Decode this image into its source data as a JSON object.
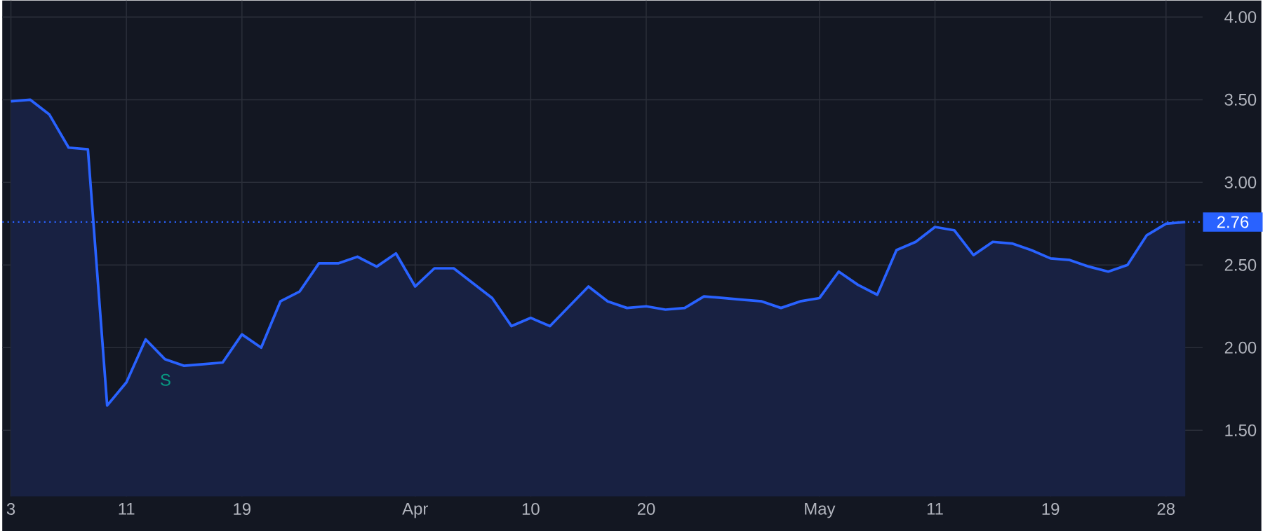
{
  "chart_data": {
    "type": "area",
    "categories": [
      "3",
      null,
      null,
      null,
      null,
      null,
      "11",
      null,
      null,
      null,
      null,
      null,
      "19",
      null,
      null,
      null,
      null,
      null,
      null,
      null,
      null,
      "Apr",
      null,
      null,
      null,
      null,
      null,
      "10",
      null,
      null,
      null,
      null,
      null,
      "20",
      null,
      null,
      null,
      null,
      null,
      null,
      null,
      null,
      "May",
      null,
      null,
      null,
      null,
      null,
      "11",
      null,
      null,
      null,
      null,
      null,
      "19",
      null,
      null,
      null,
      null,
      null,
      "28",
      null
    ],
    "series": [
      {
        "color": "#2962ff",
        "values": [
          3.49,
          3.5,
          3.41,
          3.21,
          3.2,
          1.65,
          1.79,
          2.05,
          1.93,
          1.89,
          1.9,
          1.91,
          2.08,
          2.0,
          2.28,
          2.34,
          2.51,
          2.51,
          2.55,
          2.49,
          2.57,
          2.37,
          2.48,
          2.48,
          2.39,
          2.3,
          2.13,
          2.18,
          2.13,
          2.25,
          2.37,
          2.28,
          2.24,
          2.25,
          2.23,
          2.24,
          2.31,
          2.3,
          2.29,
          2.28,
          2.24,
          2.28,
          2.3,
          2.46,
          2.38,
          2.32,
          2.59,
          2.64,
          2.73,
          2.71,
          2.56,
          2.64,
          2.63,
          2.59,
          2.54,
          2.53,
          2.49,
          2.46,
          2.5,
          2.68,
          2.75,
          2.76
        ]
      }
    ],
    "ylim": [
      1.1,
      4.1
    ],
    "yticks": [
      {
        "value": 1.5,
        "label": "1.50"
      },
      {
        "value": 2.0,
        "label": "2.00"
      },
      {
        "value": 2.5,
        "label": "2.50"
      },
      {
        "value": 3.0,
        "label": "3.00"
      },
      {
        "value": 3.5,
        "label": "3.50"
      },
      {
        "value": 4.0,
        "label": "4.00"
      }
    ],
    "grid": true,
    "ref_lines": [
      {
        "axis": "y",
        "value": 2.76,
        "label": "2.76",
        "color": "#2962ff",
        "line_style": "dotted"
      }
    ],
    "annotations": [
      "S"
    ]
  }
}
